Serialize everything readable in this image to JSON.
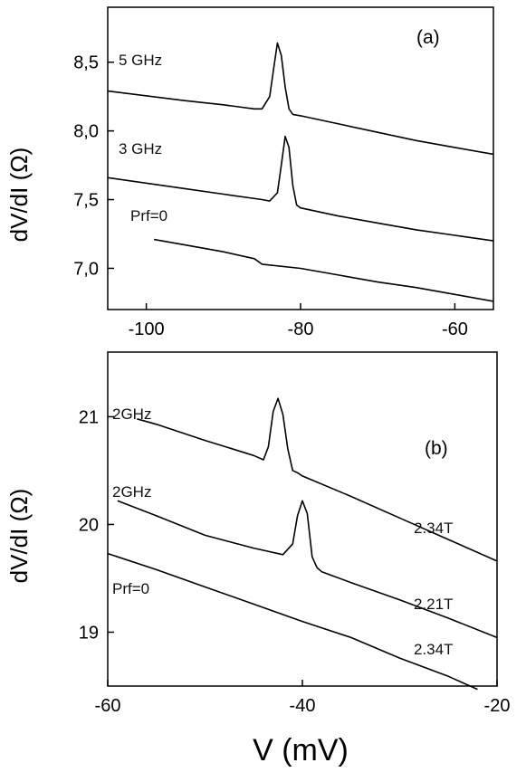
{
  "chart_data": [
    {
      "type": "line",
      "panel_label": "(a)",
      "ylabel": "dV/dI (Ω)",
      "xlim": [
        -105,
        -55
      ],
      "ylim": [
        6.7,
        8.9
      ],
      "x_ticks": [
        -100,
        -80,
        -60
      ],
      "x_tick_labels": [
        "-100",
        "-80",
        "-60"
      ],
      "y_ticks": [
        7.0,
        7.5,
        8.0,
        8.5
      ],
      "y_tick_labels": [
        "7,0",
        "7,5",
        "8,0",
        "8,5"
      ],
      "series": [
        {
          "name": "5 GHz",
          "x": [
            -105,
            -95,
            -90,
            -86,
            -85,
            -84,
            -83.5,
            -83,
            -82.5,
            -82,
            -81.5,
            -81,
            -80,
            -75,
            -70,
            -65,
            -60,
            -55
          ],
          "y": [
            8.29,
            8.22,
            8.19,
            8.16,
            8.16,
            8.25,
            8.45,
            8.64,
            8.55,
            8.32,
            8.16,
            8.12,
            8.11,
            8.05,
            7.99,
            7.93,
            7.88,
            7.83
          ]
        },
        {
          "name": "3 GHz",
          "x": [
            -105,
            -95,
            -90,
            -85,
            -84,
            -83,
            -82.5,
            -82,
            -81.5,
            -81,
            -80.5,
            -80,
            -75,
            -70,
            -65,
            -60,
            -55
          ],
          "y": [
            7.66,
            7.58,
            7.54,
            7.5,
            7.49,
            7.55,
            7.75,
            7.96,
            7.88,
            7.6,
            7.46,
            7.44,
            7.38,
            7.33,
            7.28,
            7.24,
            7.2
          ]
        },
        {
          "name": "Prf=0",
          "x": [
            -99,
            -95,
            -90,
            -86,
            -85,
            -80,
            -75,
            -70,
            -65,
            -60,
            -55
          ],
          "y": [
            7.21,
            7.17,
            7.12,
            7.07,
            7.03,
            7.0,
            6.95,
            6.9,
            6.86,
            6.81,
            6.76
          ]
        }
      ],
      "annotations": [
        "5 GHz",
        "3 GHz",
        "Prf=0"
      ]
    },
    {
      "type": "line",
      "panel_label": "(b)",
      "ylabel": "dV/dI (Ω)",
      "xlabel": "V (mV)",
      "xlim": [
        -60,
        -20
      ],
      "ylim": [
        18.5,
        21.6
      ],
      "x_ticks": [
        -60,
        -40,
        -20
      ],
      "x_tick_labels": [
        "-60",
        "-40",
        "-20"
      ],
      "y_ticks": [
        19,
        20,
        21
      ],
      "y_tick_labels": [
        "19",
        "20",
        "21"
      ],
      "series": [
        {
          "name": "2GHz 2.34T",
          "x": [
            -57,
            -55,
            -50,
            -45,
            -44,
            -43.5,
            -43,
            -42.5,
            -42,
            -41.5,
            -41,
            -40.5,
            -40,
            -35,
            -30,
            -25,
            -20
          ],
          "y": [
            20.98,
            20.93,
            20.78,
            20.64,
            20.6,
            20.72,
            21.05,
            21.17,
            21.02,
            20.7,
            20.5,
            20.48,
            20.45,
            20.26,
            20.06,
            19.86,
            19.66
          ]
        },
        {
          "name": "2GHz 2.21T",
          "x": [
            -59,
            -55,
            -50,
            -45,
            -42,
            -41,
            -40.5,
            -40,
            -39.5,
            -39,
            -38.5,
            -38,
            -35,
            -30,
            -25,
            -20
          ],
          "y": [
            20.22,
            20.08,
            19.9,
            19.78,
            19.72,
            19.82,
            20.08,
            20.22,
            20.1,
            19.7,
            19.6,
            19.56,
            19.46,
            19.3,
            19.13,
            18.95
          ]
        },
        {
          "name": "Prf=0 2.34T",
          "x": [
            -60,
            -55,
            -50,
            -45,
            -40,
            -35,
            -30,
            -25,
            -22
          ],
          "y": [
            19.73,
            19.58,
            19.42,
            19.26,
            19.1,
            18.95,
            18.76,
            18.59,
            18.47
          ]
        }
      ],
      "annotations": [
        "2GHz",
        "2GHz",
        "Prf=0",
        "2.34T",
        "2.21T",
        "2.34T"
      ]
    }
  ]
}
